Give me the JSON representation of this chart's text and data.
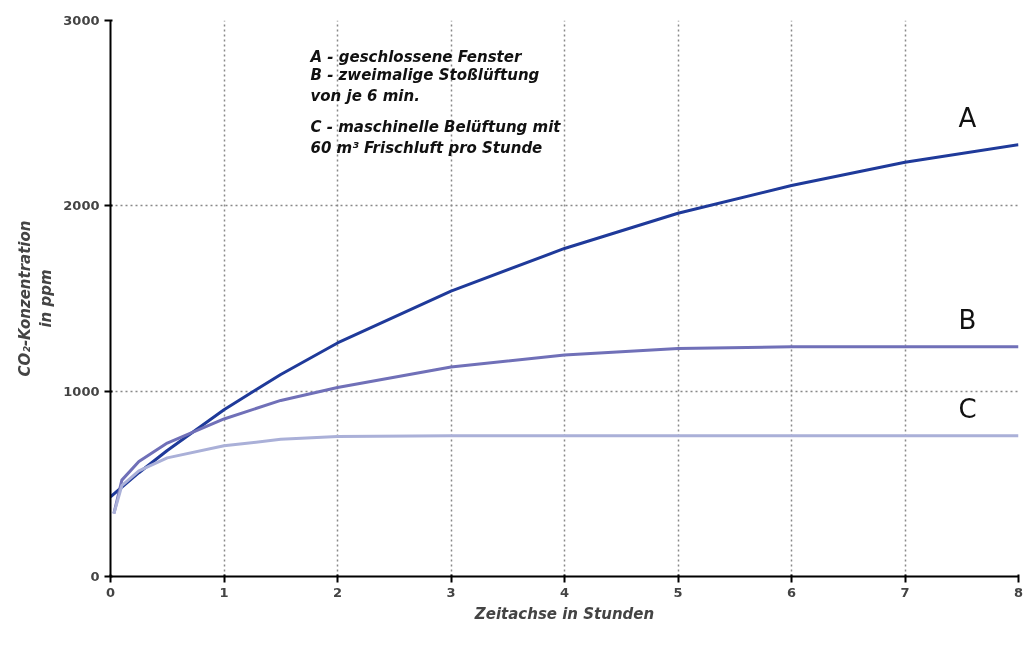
{
  "chart_data": {
    "type": "line",
    "xlabel": "Zeitachse in Stunden",
    "ylabel": "CO₂-Konzentration\nin ppm",
    "xlim": [
      0,
      8
    ],
    "ylim": [
      0,
      3000
    ],
    "xticks": [
      0,
      1,
      2,
      3,
      4,
      5,
      6,
      7,
      8
    ],
    "yticks": [
      0,
      1000,
      2000,
      3000
    ],
    "grid": true,
    "marker": "none",
    "line_style": "solid",
    "series": [
      {
        "name": "A",
        "color": "#1f3a9a",
        "x": [
          0,
          0.25,
          0.5,
          1,
          1.5,
          2,
          3,
          4,
          5,
          6,
          7,
          8
        ],
        "values": [
          430,
          560,
          680,
          900,
          1090,
          1260,
          1540,
          1770,
          1960,
          2110,
          2235,
          2330
        ]
      },
      {
        "name": "B",
        "color": "#7070b8",
        "x": [
          0.03,
          0.1,
          0.25,
          0.5,
          1,
          1.5,
          2,
          3,
          4,
          5,
          6,
          8
        ],
        "values": [
          340,
          520,
          620,
          720,
          850,
          950,
          1020,
          1130,
          1195,
          1230,
          1240,
          1240
        ]
      },
      {
        "name": "C",
        "color": "#aab0d8",
        "x": [
          0.03,
          0.1,
          0.25,
          0.5,
          1,
          1.5,
          2,
          3,
          8
        ],
        "values": [
          340,
          490,
          570,
          640,
          705,
          740,
          755,
          760,
          760
        ]
      }
    ],
    "annotations": [
      "A - geschlossene Fenster",
      "B - zweimalige Stoßlüftung\nvon je 6 min.",
      "C - maschinelle Belüftung mit\n60 m³ Frischluft pro Stunde"
    ]
  }
}
